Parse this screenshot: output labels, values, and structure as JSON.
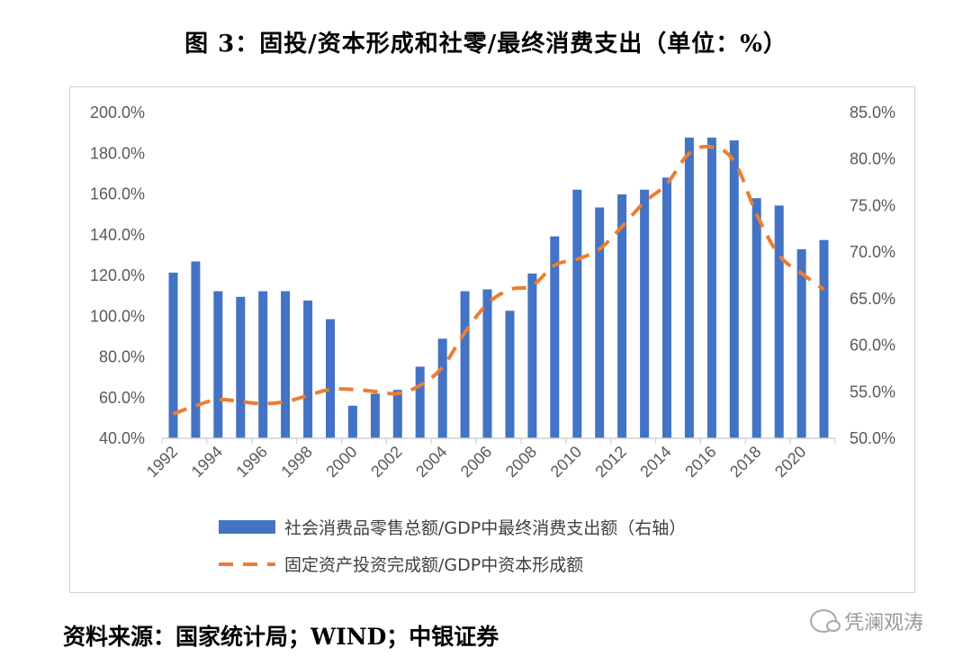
{
  "title": "图 3：固投/资本形成和社零/最终消费支出（单位：%）",
  "source": "资料来源：国家统计局；WIND；中银证券",
  "watermark": "凭澜观涛",
  "chart_data": {
    "type": "bar",
    "categories": [
      "1992",
      "1993",
      "1994",
      "1995",
      "1996",
      "1997",
      "1998",
      "1999",
      "2000",
      "2001",
      "2002",
      "2003",
      "2004",
      "2005",
      "2006",
      "2007",
      "2008",
      "2009",
      "2010",
      "2011",
      "2012",
      "2013",
      "2014",
      "2015",
      "2016",
      "2017",
      "2018",
      "2019",
      "2020",
      "2021"
    ],
    "x_tick_labels": [
      "1992",
      "1994",
      "1996",
      "1998",
      "2000",
      "2002",
      "2004",
      "2006",
      "2008",
      "2010",
      "2012",
      "2014",
      "2016",
      "2018",
      "2020"
    ],
    "left_axis": {
      "ylim": [
        40,
        200
      ],
      "ticks": [
        "40.0%",
        "60.0%",
        "80.0%",
        "100.0%",
        "120.0%",
        "140.0%",
        "160.0%",
        "180.0%",
        "200.0%"
      ]
    },
    "right_axis": {
      "ylim": [
        50,
        85
      ],
      "ticks": [
        "50.0%",
        "55.0%",
        "60.0%",
        "65.0%",
        "70.0%",
        "75.0%",
        "80.0%",
        "85.0%"
      ]
    },
    "series": [
      {
        "name": "社会消费品零售总额/GDP中最终消费支出额（右轴）",
        "type": "bar",
        "axis": "right",
        "color": "#4472c4",
        "values": [
          67.8,
          69.0,
          65.8,
          65.2,
          65.8,
          65.8,
          64.8,
          62.8,
          53.5,
          54.8,
          55.2,
          57.7,
          60.7,
          65.8,
          66.0,
          63.7,
          67.7,
          71.7,
          76.7,
          74.8,
          76.2,
          76.7,
          78.0,
          82.3,
          82.3,
          82.0,
          75.8,
          75.0,
          70.3,
          71.3
        ]
      },
      {
        "name": "固定资产投资完成额/GDP中资本形成额",
        "type": "line",
        "axis": "left",
        "color": "#ed7d31",
        "values": [
          52,
          56,
          59,
          58,
          57,
          58,
          61,
          64,
          64,
          63,
          62,
          66,
          75,
          92,
          106,
          113,
          115,
          125,
          128,
          133,
          144,
          156,
          165,
          180,
          183,
          176,
          150,
          130,
          121,
          113
        ]
      }
    ],
    "legend_position": "bottom",
    "grid": false
  }
}
